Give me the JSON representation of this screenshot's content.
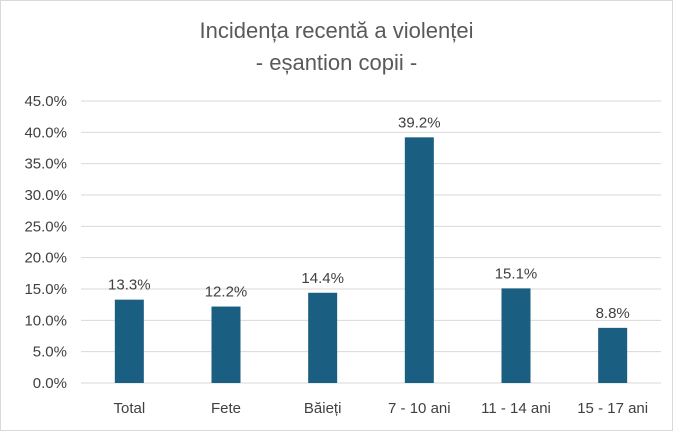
{
  "chart_data": {
    "type": "bar",
    "title": "Incidența recentă a violenței",
    "subtitle": "- eșantion copii -",
    "categories": [
      "Total",
      "Fete",
      "Băieți",
      "7 - 10 ani",
      "11 - 14 ani",
      "15 - 17 ani"
    ],
    "values": [
      13.3,
      12.2,
      14.4,
      39.2,
      15.1,
      8.8
    ],
    "data_labels": [
      "13.3%",
      "12.2%",
      "14.4%",
      "39.2%",
      "15.1%",
      "8.8%"
    ],
    "ylim": [
      0,
      45
    ],
    "yticks": [
      0,
      5,
      10,
      15,
      20,
      25,
      30,
      35,
      40,
      45
    ],
    "ytick_labels": [
      "0.0%",
      "5.0%",
      "10.0%",
      "15.0%",
      "20.0%",
      "25.0%",
      "30.0%",
      "35.0%",
      "40.0%",
      "45.0%"
    ],
    "xlabel": "",
    "ylabel": "",
    "grid": true,
    "bar_color": "#1a5e82",
    "grid_color": "#d9d9d9"
  }
}
